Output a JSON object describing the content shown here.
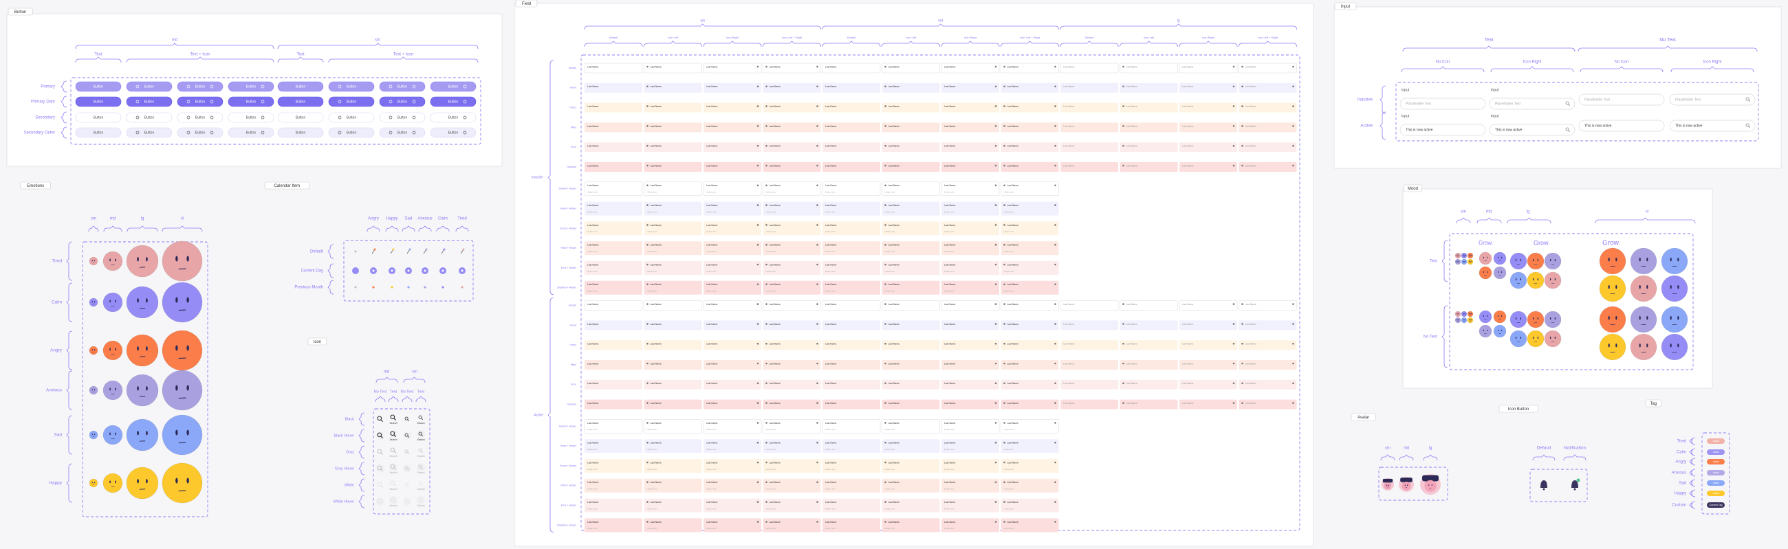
{
  "button": {
    "title": "Button",
    "sizes": [
      "md",
      "sm"
    ],
    "variants": [
      "Text",
      "Text + Icon",
      "Text",
      "Text + Icon"
    ],
    "rows": [
      "Primary",
      "Primary Dark",
      "Secondary",
      "Secondary Outer"
    ],
    "label": "Button"
  },
  "emotions": {
    "title": "Emotions",
    "sizes": [
      "sm",
      "md",
      "lg",
      "xl"
    ],
    "rows": [
      "Tired",
      "Calm",
      "Angry",
      "Anxious",
      "Sad",
      "Happy"
    ]
  },
  "calendar_item": {
    "title": "Calendar Item",
    "columns": [
      "Angry",
      "Happy",
      "Sad",
      "Anxious",
      "Calm",
      "Tired"
    ],
    "rows": [
      "Default",
      "Current Day",
      "Previous Month"
    ]
  },
  "icon": {
    "title": "Icon",
    "sizes": [
      "md",
      "sm"
    ],
    "variants": [
      "No Text",
      "Text",
      "No Text",
      "Text"
    ],
    "rows": [
      "Black",
      "Black Hover",
      "Gray",
      "Gray Hover",
      "White",
      "White Hover"
    ],
    "label": "Search"
  },
  "field": {
    "title": "Field",
    "groups": [
      "sm",
      "md",
      "lg"
    ],
    "columns": [
      "Default",
      "Icon Left",
      "Icon Right",
      "Icon Left + Right",
      "Default",
      "Icon Left",
      "Icon Right",
      "Icon Left + Right",
      "Default",
      "Icon Left",
      "Icon Right",
      "Icon Left + Right"
    ],
    "states": [
      "Inactive",
      "Active"
    ],
    "rows": [
      "Default",
      "Hover",
      "Focus",
      "Filled",
      "Error",
      "Disabled",
      "Default + Helper",
      "Hover + Helper",
      "Focus + Helper",
      "Filled + Helper",
      "Error + Helper",
      "Disabled + Helper"
    ],
    "label": "Last Name",
    "helper": "Helper text"
  },
  "input": {
    "title": "Input",
    "groups": [
      "Text",
      "No Text"
    ],
    "variants": [
      "No Icon",
      "Icon Right",
      "No Icon",
      "Icon Right"
    ],
    "rows": [
      "Inactive",
      "Active"
    ],
    "label": "Input",
    "placeholder": "Placeholder Text",
    "active_text": "This is now active"
  },
  "mood": {
    "title": "Mood",
    "sizes": [
      "sm",
      "md",
      "lg",
      "xl"
    ],
    "rows": [
      "Text",
      "No Text"
    ],
    "text": "Grow."
  },
  "tag": {
    "title": "Tag",
    "rows": [
      "Tired",
      "Calm",
      "Angry",
      "Anxious",
      "Sad",
      "Happy",
      "Custom"
    ],
    "label": "Label",
    "custom_label": "Custom Tag"
  },
  "icon_button": {
    "title": "Icon Button",
    "columns": [
      "Default",
      "Notification"
    ]
  },
  "avatar": {
    "title": "Avatar",
    "sizes": [
      "sm",
      "md",
      "lg"
    ]
  }
}
